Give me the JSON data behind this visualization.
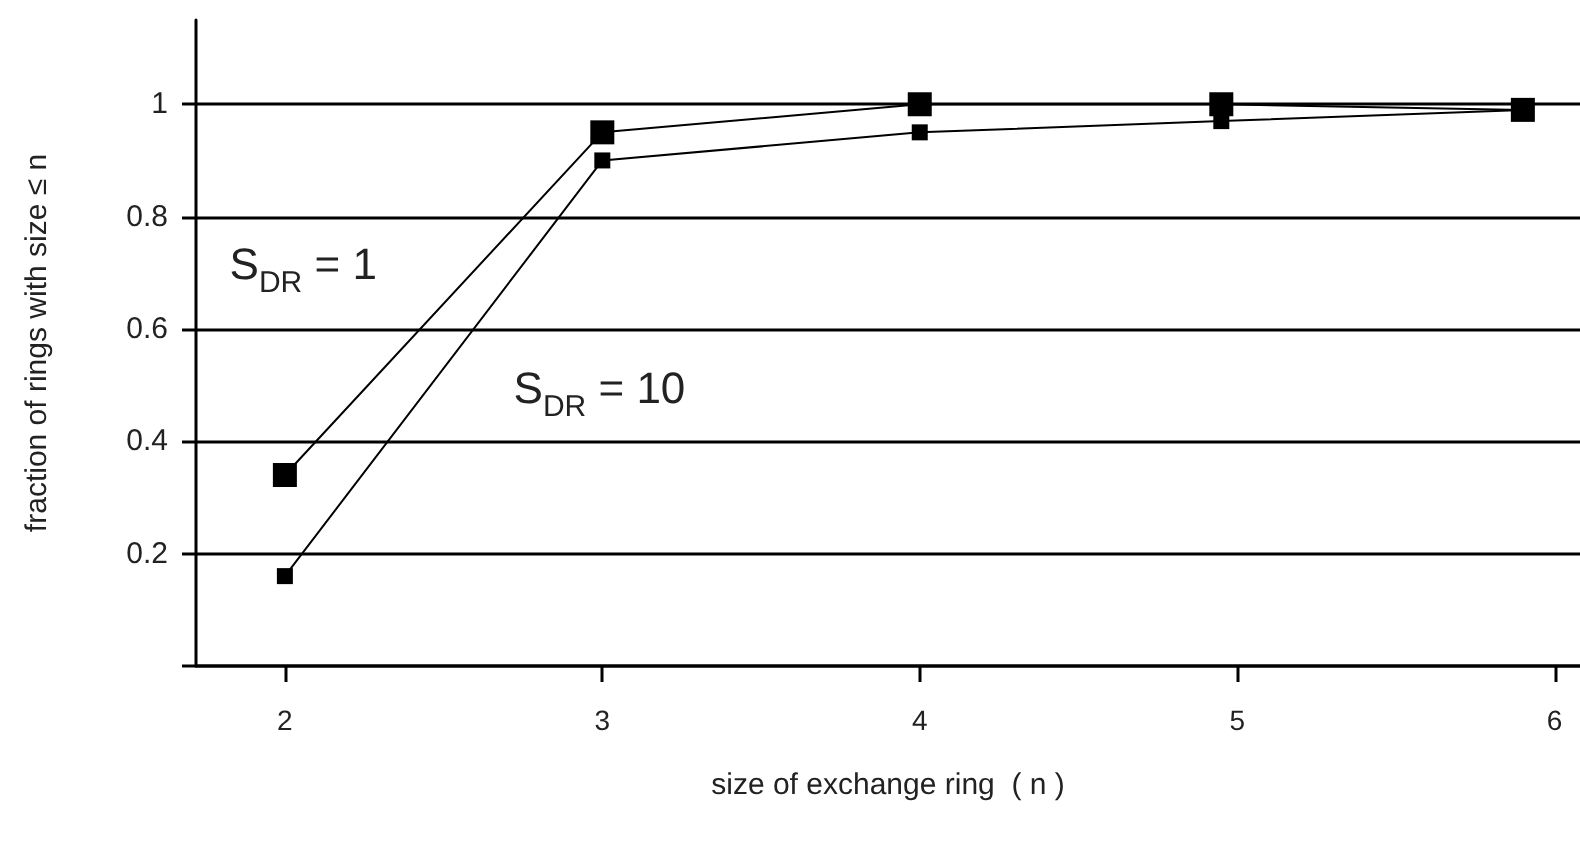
{
  "chart_data": {
    "type": "line",
    "xlabel": "size of exchange ring  ( n )",
    "ylabel": "fraction of rings with size ≤ n",
    "x": [
      2,
      3,
      4,
      4.95,
      5.9
    ],
    "series": [
      {
        "name": "S$_{DR}$ = 1",
        "color": "#000000",
        "values": [
          0.34,
          0.95,
          1.0,
          1.0,
          0.99
        ]
      },
      {
        "name": "S$_{DR}$ = 10",
        "color": "#000000",
        "values": [
          0.16,
          0.9,
          0.95,
          0.97,
          0.99
        ]
      }
    ],
    "xlim": [
      1.72,
      6.08
    ],
    "xticks": [
      2,
      3,
      4,
      5,
      6
    ],
    "ylim": [
      0,
      1.15
    ],
    "yticks": [
      {
        "value": 0,
        "label": null
      },
      0.2,
      0.4,
      0.6,
      0.8,
      1
    ],
    "grid": "y",
    "legend": false,
    "marker": "square",
    "line_style": "solid"
  }
}
